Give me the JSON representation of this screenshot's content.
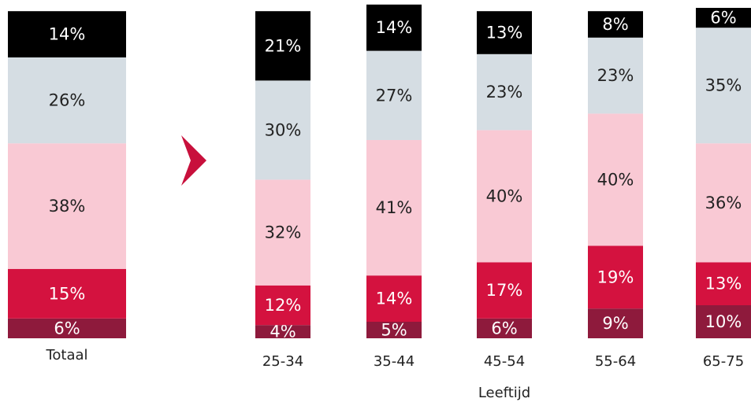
{
  "chart_data": {
    "type": "stacked_bar",
    "categories": [
      "Totaal",
      "25-34",
      "35-44",
      "45-54",
      "55-64",
      "65-75"
    ],
    "x_label": "Leeftijd",
    "series": [
      {
        "color": "#8e1a3c",
        "label_color": "#ffffff",
        "values": [
          6,
          4,
          5,
          6,
          9,
          10
        ],
        "value_labels": [
          "6%",
          "4%",
          "5%",
          "6%",
          "9%",
          "10%"
        ]
      },
      {
        "color": "#d4123f",
        "label_color": "#ffffff",
        "values": [
          15,
          12,
          14,
          17,
          19,
          13
        ],
        "value_labels": [
          "15%",
          "12%",
          "14%",
          "17%",
          "19%",
          "13%"
        ]
      },
      {
        "color": "#f9c9d4",
        "label_color": "#222222",
        "values": [
          38,
          32,
          41,
          40,
          40,
          36
        ],
        "value_labels": [
          "38%",
          "32%",
          "41%",
          "40%",
          "40%",
          "36%"
        ]
      },
      {
        "color": "#d5dde3",
        "label_color": "#222222",
        "values": [
          26,
          30,
          27,
          23,
          23,
          35
        ],
        "value_labels": [
          "26%",
          "30%",
          "27%",
          "23%",
          "23%",
          "35%"
        ]
      },
      {
        "color": "#000000",
        "label_color": "#ffffff",
        "values": [
          14,
          21,
          14,
          13,
          8,
          6
        ],
        "value_labels": [
          "14%",
          "21%",
          "14%",
          "13%",
          "8%",
          "6%"
        ]
      }
    ]
  }
}
